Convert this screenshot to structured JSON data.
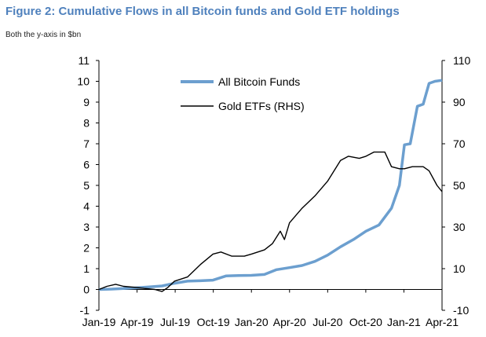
{
  "header": {
    "title": "Figure 2: Cumulative Flows in all Bitcoin funds and Gold ETF holdings",
    "subtitle": "Both the y-axis in $bn"
  },
  "chart_data": {
    "type": "line",
    "title": "Figure 2: Cumulative Flows in all Bitcoin funds and Gold ETF holdings",
    "subtitle": "Both the y-axis in $bn",
    "x_ticks": [
      "Jan-19",
      "Apr-19",
      "Jul-19",
      "Oct-19",
      "Jan-20",
      "Apr-20",
      "Jul-20",
      "Oct-20",
      "Jan-21",
      "Apr-21"
    ],
    "xlim": [
      "2019-01-01",
      "2021-04-01"
    ],
    "y_left": {
      "ticks": [
        -1,
        0,
        1,
        2,
        3,
        4,
        5,
        6,
        7,
        8,
        9,
        10,
        11
      ],
      "ylim": [
        -1,
        11
      ]
    },
    "y_right": {
      "ticks": [
        -10,
        10,
        30,
        50,
        70,
        90,
        110
      ],
      "ylim": [
        -10,
        110
      ]
    },
    "grid": false,
    "legend_position": "top-center",
    "colors": {
      "bitcoin": "#6c9fcf",
      "gold": "#000000"
    },
    "series": [
      {
        "name": "All Bitcoin Funds",
        "axis": "left",
        "x": [
          "2019-01-01",
          "2019-02-01",
          "2019-03-01",
          "2019-04-01",
          "2019-05-01",
          "2019-06-01",
          "2019-07-01",
          "2019-08-01",
          "2019-09-01",
          "2019-10-01",
          "2019-11-01",
          "2019-12-01",
          "2020-01-01",
          "2020-02-01",
          "2020-03-01",
          "2020-04-01",
          "2020-05-01",
          "2020-06-01",
          "2020-07-01",
          "2020-08-01",
          "2020-09-01",
          "2020-10-01",
          "2020-11-01",
          "2020-12-01",
          "2020-12-20",
          "2021-01-01",
          "2021-01-15",
          "2021-02-01",
          "2021-02-15",
          "2021-03-01",
          "2021-03-15",
          "2021-04-01"
        ],
        "values": [
          0.0,
          0.02,
          0.05,
          0.08,
          0.12,
          0.17,
          0.3,
          0.4,
          0.42,
          0.45,
          0.65,
          0.67,
          0.68,
          0.72,
          0.95,
          1.05,
          1.15,
          1.35,
          1.65,
          2.05,
          2.4,
          2.8,
          3.1,
          3.9,
          5.0,
          6.95,
          7.0,
          8.8,
          8.9,
          9.9,
          10.0,
          10.05
        ]
      },
      {
        "name": "Gold ETFs (RHS)",
        "axis": "right",
        "x": [
          "2019-01-01",
          "2019-01-20",
          "2019-02-10",
          "2019-03-01",
          "2019-04-01",
          "2019-04-20",
          "2019-05-15",
          "2019-06-01",
          "2019-06-15",
          "2019-07-01",
          "2019-08-01",
          "2019-09-01",
          "2019-10-01",
          "2019-10-20",
          "2019-11-15",
          "2019-12-15",
          "2020-01-01",
          "2020-02-01",
          "2020-02-20",
          "2020-03-10",
          "2020-03-20",
          "2020-04-01",
          "2020-05-01",
          "2020-06-01",
          "2020-07-01",
          "2020-08-01",
          "2020-08-20",
          "2020-09-15",
          "2020-10-01",
          "2020-10-20",
          "2020-11-15",
          "2020-12-01",
          "2020-12-20",
          "2021-01-01",
          "2021-01-20",
          "2021-02-15",
          "2021-03-01",
          "2021-03-20",
          "2021-04-01"
        ],
        "values": [
          0,
          1.5,
          2.5,
          1.5,
          1,
          0.5,
          0,
          -1,
          1,
          4,
          6,
          12,
          17,
          18,
          16,
          16,
          17,
          19,
          22,
          28,
          24,
          32,
          39,
          45,
          52,
          62,
          64,
          63,
          64,
          66,
          66,
          59,
          58,
          58,
          59,
          59,
          57,
          50,
          47
        ]
      }
    ]
  }
}
